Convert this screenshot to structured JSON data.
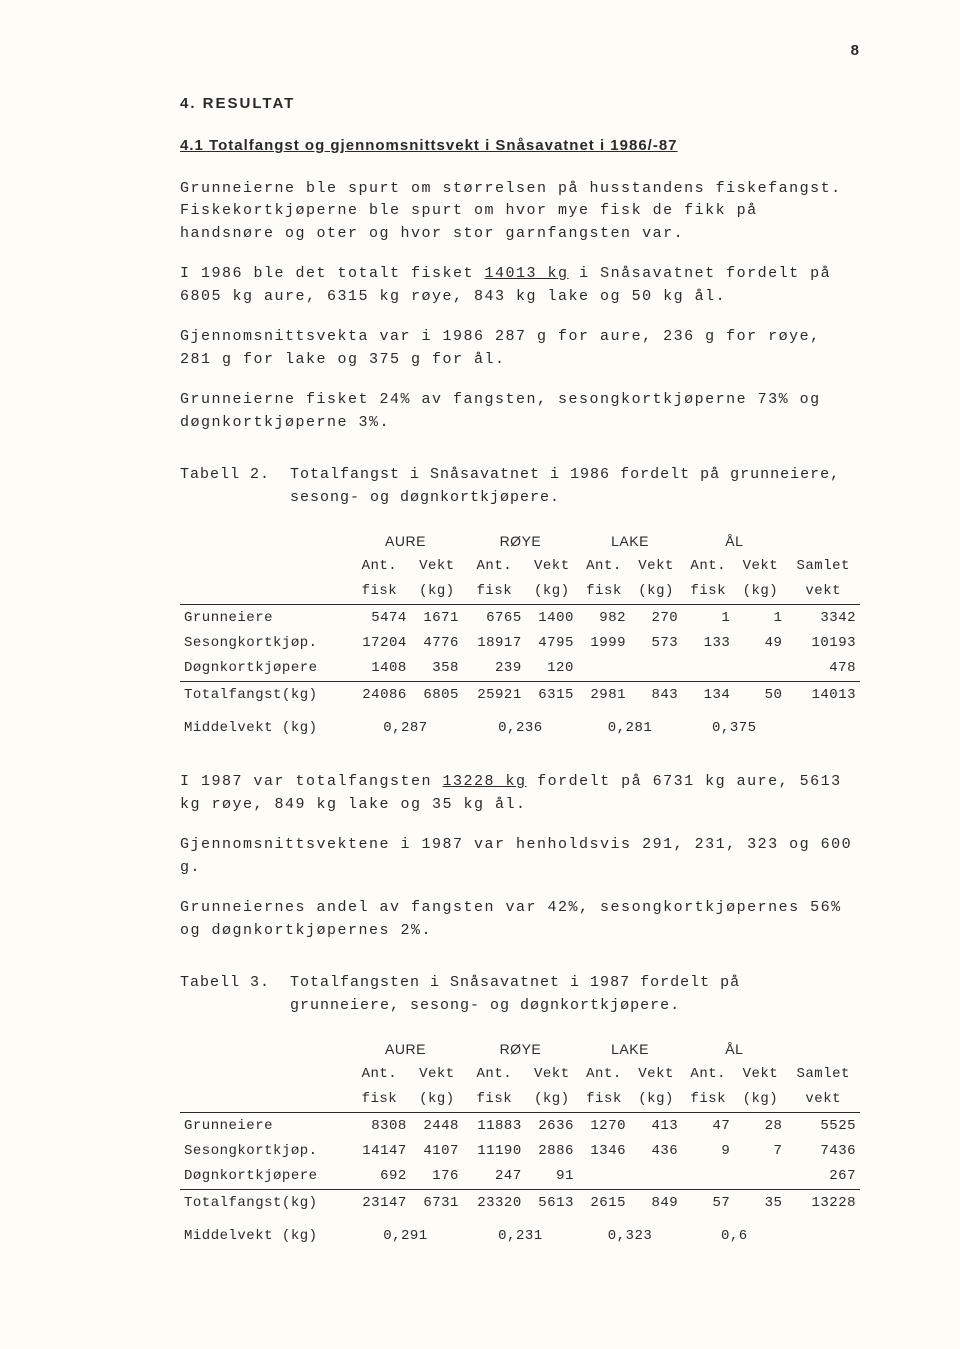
{
  "pageNumber": "8",
  "sectionTitle": "4. RESULTAT",
  "subsectionTitle": "4.1 Totalfangst og gjennomsnittsvekt i Snåsavatnet i 1986/-87",
  "para1": "Grunneierne ble spurt om størrelsen på husstandens fiskefangst. Fiskekortkjøperne ble spurt om hvor mye fisk de fikk på handsnøre og oter og hvor stor garnfangsten var.",
  "para2a": "I 1986 ble det totalt fisket ",
  "para2u": "14013 kg",
  "para2b": " i Snåsavatnet fordelt på 6805 kg aure, 6315 kg røye, 843 kg lake og 50 kg ål.",
  "para3": "Gjennomsnittsvekta var i 1986 287 g for aure, 236 g for røye, 281 g for lake og 375 g for ål.",
  "para4": "Grunneierne fisket 24% av fangsten, sesongkortkjøperne 73% og døgnkortkjøperne 3%.",
  "table2": {
    "label": "Tabell 2.",
    "caption": "Totalfangst i Snåsavatnet i 1986 fordelt på grunneiere, sesong- og døgnkortkjøpere.",
    "groups": [
      "AURE",
      "RØYE",
      "LAKE",
      "ÅL",
      ""
    ],
    "sub1": "Ant.",
    "sub2": "Vekt",
    "sub3": "fisk",
    "sub4": "(kg)",
    "samletLabel": "Samlet",
    "vektLabel": "vekt",
    "rows": [
      {
        "label": "Grunneiere",
        "aure_ant": "5474",
        "aure_vekt": "1671",
        "roye_ant": "6765",
        "roye_vekt": "1400",
        "lake_ant": "982",
        "lake_vekt": "270",
        "al_ant": "1",
        "al_vekt": "1",
        "samlet": "3342"
      },
      {
        "label": "Sesongkortkjøp.",
        "aure_ant": "17204",
        "aure_vekt": "4776",
        "roye_ant": "18917",
        "roye_vekt": "4795",
        "lake_ant": "1999",
        "lake_vekt": "573",
        "al_ant": "133",
        "al_vekt": "49",
        "samlet": "10193"
      },
      {
        "label": "Døgnkortkjøpere",
        "aure_ant": "1408",
        "aure_vekt": "358",
        "roye_ant": "239",
        "roye_vekt": "120",
        "lake_ant": "",
        "lake_vekt": "",
        "al_ant": "",
        "al_vekt": "",
        "samlet": "478"
      }
    ],
    "total": {
      "label": "Totalfangst(kg)",
      "aure_ant": "24086",
      "aure_vekt": "6805",
      "roye_ant": "25921",
      "roye_vekt": "6315",
      "lake_ant": "2981",
      "lake_vekt": "843",
      "al_ant": "134",
      "al_vekt": "50",
      "samlet": "14013"
    },
    "middel": {
      "label": "Middelvekt (kg)",
      "aure": "0,287",
      "roye": "0,236",
      "lake": "0,281",
      "al": "0,375"
    }
  },
  "para5a": "I 1987 var totalfangsten ",
  "para5u": "13228 kg",
  "para5b": " fordelt på 6731 kg aure, 5613 kg røye, 849 kg lake og 35 kg ål.",
  "para6": "Gjennomsnittsvektene i 1987 var henholdsvis 291, 231, 323 og 600 g.",
  "para7": "Grunneiernes andel av fangsten var 42%, sesongkortkjøpernes 56% og døgnkortkjøpernes 2%.",
  "table3": {
    "label": "Tabell 3.",
    "caption": "Totalfangsten i Snåsavatnet i 1987 fordelt på grunneiere, sesong- og døgnkortkjøpere.",
    "rows": [
      {
        "label": "Grunneiere",
        "aure_ant": "8308",
        "aure_vekt": "2448",
        "roye_ant": "11883",
        "roye_vekt": "2636",
        "lake_ant": "1270",
        "lake_vekt": "413",
        "al_ant": "47",
        "al_vekt": "28",
        "samlet": "5525"
      },
      {
        "label": "Sesongkortkjøp.",
        "aure_ant": "14147",
        "aure_vekt": "4107",
        "roye_ant": "11190",
        "roye_vekt": "2886",
        "lake_ant": "1346",
        "lake_vekt": "436",
        "al_ant": "9",
        "al_vekt": "7",
        "samlet": "7436"
      },
      {
        "label": "Døgnkortkjøpere",
        "aure_ant": "692",
        "aure_vekt": "176",
        "roye_ant": "247",
        "roye_vekt": "91",
        "lake_ant": "",
        "lake_vekt": "",
        "al_ant": "",
        "al_vekt": "",
        "samlet": "267"
      }
    ],
    "total": {
      "label": "Totalfangst(kg)",
      "aure_ant": "23147",
      "aure_vekt": "6731",
      "roye_ant": "23320",
      "roye_vekt": "5613",
      "lake_ant": "2615",
      "lake_vekt": "849",
      "al_ant": "57",
      "al_vekt": "35",
      "samlet": "13228"
    },
    "middel": {
      "label": "Middelvekt (kg)",
      "aure": "0,291",
      "roye": "0,231",
      "lake": "0,323",
      "al": "0,6"
    }
  }
}
